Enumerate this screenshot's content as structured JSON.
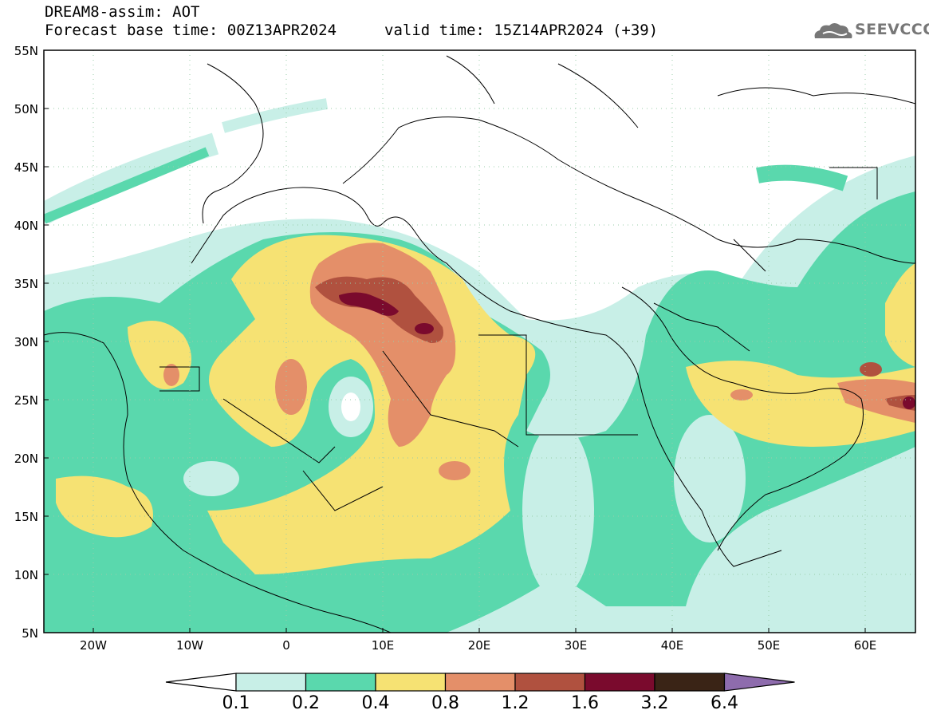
{
  "header": {
    "title": "DREAM8-assim: AOT",
    "base_time": "Forecast base time: 00Z13APR2024",
    "valid_time": "valid time: 15Z14APR2024 (+39)",
    "logo_text": "SEEVCCC"
  },
  "map": {
    "lat_labels": [
      "55N",
      "50N",
      "45N",
      "40N",
      "35N",
      "30N",
      "25N",
      "20N",
      "15N",
      "10N",
      "5N"
    ],
    "lon_labels": [
      "20W",
      "10W",
      "0",
      "10E",
      "20E",
      "30E",
      "40E",
      "50E",
      "60E"
    ],
    "extent": {
      "lon_min": -25,
      "lon_max": 65,
      "lat_min": 5,
      "lat_max": 55
    }
  },
  "legend": {
    "levels": [
      "0.1",
      "0.2",
      "0.4",
      "0.8",
      "1.2",
      "1.6",
      "3.2",
      "6.4"
    ],
    "colors": [
      "#ffffff",
      "#c8efe7",
      "#5ad8ad",
      "#f6e273",
      "#e48f69",
      "#b0513f",
      "#7a0a2d",
      "#3a2416",
      "#8e6cad"
    ]
  }
}
